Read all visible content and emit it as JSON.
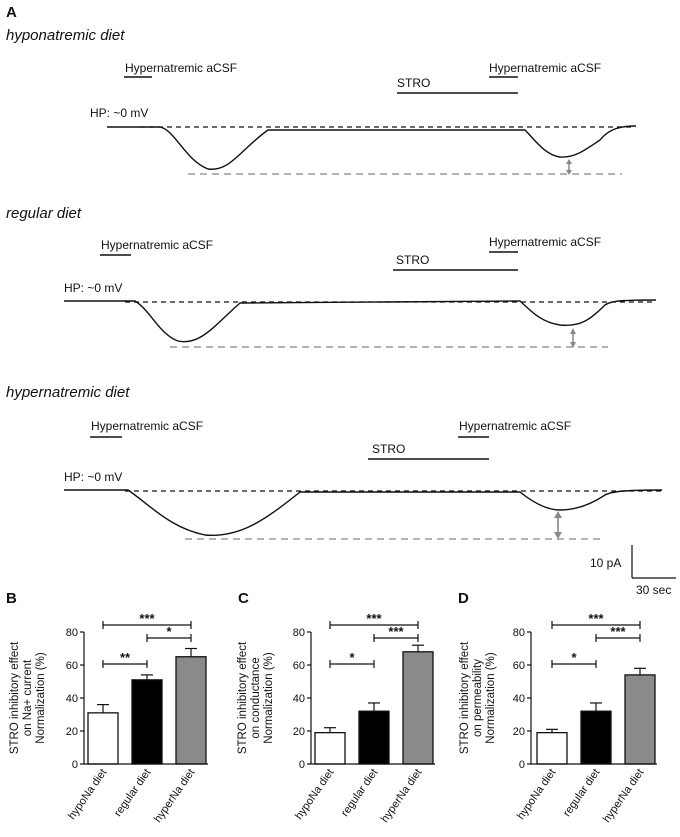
{
  "figure": {
    "panel_a_letter": "A",
    "traces": [
      {
        "diet_title": "hyponatremic diet",
        "stim1_label": "Hypernatremic aCSF",
        "stro_label": "STRO",
        "stim2_label": "Hypernatremic aCSF",
        "hp_label": "HP: ~0 mV"
      },
      {
        "diet_title": "regular diet",
        "stim1_label": "Hypernatremic aCSF",
        "stro_label": "STRO",
        "stim2_label": "Hypernatremic aCSF",
        "hp_label": "HP: ~0 mV"
      },
      {
        "diet_title": "hypernatremic diet",
        "stim1_label": "Hypernatremic aCSF",
        "stro_label": "STRO",
        "stim2_label": "Hypernatremic aCSF",
        "hp_label": "HP: ~0 mV"
      }
    ],
    "scale_bar": {
      "current": "10 pA",
      "time": "30 sec"
    }
  },
  "colors": {
    "regular": "#000000",
    "hyper": "#8a8a8a",
    "hypo": "#ffffff",
    "trace": "#111111",
    "dash_gray": "#888888"
  },
  "chart_data": [
    {
      "panel": "B",
      "type": "bar",
      "ylabel_lines": [
        "STRO inhibitory effect",
        "on Na+ current",
        "Normalization (%)"
      ],
      "categories": [
        "hypoNa diet",
        "regular diet",
        "hyperNa diet"
      ],
      "values": [
        31,
        51,
        65
      ],
      "errors": [
        5,
        3,
        5
      ],
      "ylim": [
        0,
        80
      ],
      "yticks": [
        0,
        20,
        40,
        60,
        80
      ],
      "sig": [
        {
          "from": 0,
          "to": 1,
          "label": "**",
          "level": 1
        },
        {
          "from": 1,
          "to": 2,
          "label": "*",
          "level": 2
        },
        {
          "from": 0,
          "to": 2,
          "label": "***",
          "level": 3
        }
      ]
    },
    {
      "panel": "C",
      "type": "bar",
      "ylabel_lines": [
        "STRO inhibitory effect",
        "on conductance",
        "Normalization (%)"
      ],
      "categories": [
        "hypoNa diet",
        "regular diet",
        "hyperNa diet"
      ],
      "values": [
        19,
        32,
        68
      ],
      "errors": [
        3,
        5,
        4
      ],
      "ylim": [
        0,
        80
      ],
      "yticks": [
        0,
        20,
        40,
        60,
        80
      ],
      "sig": [
        {
          "from": 0,
          "to": 1,
          "label": "*",
          "level": 1
        },
        {
          "from": 1,
          "to": 2,
          "label": "***",
          "level": 2
        },
        {
          "from": 0,
          "to": 2,
          "label": "***",
          "level": 3
        }
      ]
    },
    {
      "panel": "D",
      "type": "bar",
      "ylabel_lines": [
        "STRO inhibitory effect",
        "on permeability",
        "Normalization (%)"
      ],
      "categories": [
        "hypoNa diet",
        "regular diet",
        "hyperNa diet"
      ],
      "values": [
        19,
        32,
        54
      ],
      "errors": [
        2,
        5,
        4
      ],
      "ylim": [
        0,
        80
      ],
      "yticks": [
        0,
        20,
        40,
        60,
        80
      ],
      "sig": [
        {
          "from": 0,
          "to": 1,
          "label": "*",
          "level": 1
        },
        {
          "from": 1,
          "to": 2,
          "label": "***",
          "level": 2
        },
        {
          "from": 0,
          "to": 2,
          "label": "***",
          "level": 3
        }
      ]
    }
  ]
}
